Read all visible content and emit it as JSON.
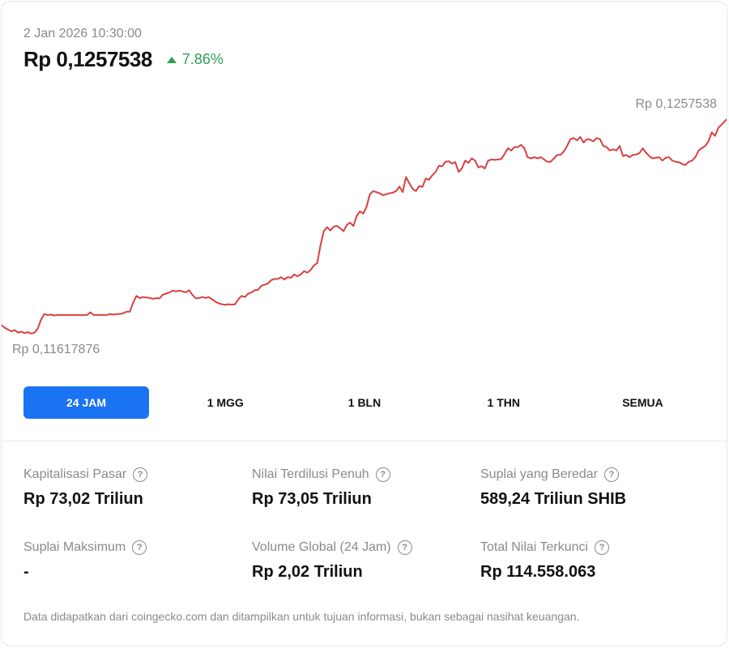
{
  "header": {
    "timestamp": "2 Jan 2026 10:30:00",
    "price": "Rp 0,1257538",
    "change": "7.86%",
    "change_icon": "triangle-up-icon",
    "change_color": "#2ea055"
  },
  "chart_data": {
    "type": "line",
    "title": "",
    "xlabel": "",
    "ylabel": "",
    "max_label": "Rp 0,1257538",
    "min_label": "Rp 0,11617876",
    "ylim": [
      0.1161,
      0.1258
    ],
    "line_color": "#d94040",
    "grid": false,
    "series": [
      {
        "name": "",
        "values": [
          0.11655,
          0.11643,
          0.11635,
          0.11628,
          0.11633,
          0.11622,
          0.11626,
          0.1162,
          0.11624,
          0.11618,
          0.11622,
          0.1164,
          0.1168,
          0.11705,
          0.117,
          0.11702,
          0.11698,
          0.117,
          0.117,
          0.117,
          0.117,
          0.117,
          0.117,
          0.117,
          0.117,
          0.117,
          0.117,
          0.11712,
          0.117,
          0.117,
          0.117,
          0.117,
          0.117,
          0.11705,
          0.11702,
          0.11704,
          0.11705,
          0.11708,
          0.11715,
          0.11715,
          0.11755,
          0.11785,
          0.11775,
          0.1178,
          0.11778,
          0.11776,
          0.11772,
          0.11775,
          0.11774,
          0.1179,
          0.11795,
          0.118,
          0.11808,
          0.11805,
          0.11808,
          0.11805,
          0.118,
          0.1181,
          0.1179,
          0.11775,
          0.11775,
          0.1178,
          0.11776,
          0.1178,
          0.1177,
          0.1176,
          0.11752,
          0.11748,
          0.11745,
          0.11748,
          0.11746,
          0.11748,
          0.1177,
          0.11785,
          0.1178,
          0.11795,
          0.118,
          0.1181,
          0.11812,
          0.1183,
          0.11835,
          0.1184,
          0.11855,
          0.1186,
          0.1186,
          0.11868,
          0.11858,
          0.11868,
          0.11865,
          0.1188,
          0.11872,
          0.1188,
          0.11895,
          0.11888,
          0.119,
          0.1192,
          0.1193,
          0.1201,
          0.12072,
          0.1209,
          0.12075,
          0.12092,
          0.12095,
          0.12085,
          0.12072,
          0.121,
          0.1211,
          0.12095,
          0.1214,
          0.1216,
          0.1215,
          0.1218,
          0.12235,
          0.1225,
          0.12245,
          0.1224,
          0.12232,
          0.12236,
          0.1224,
          0.12243,
          0.1225,
          0.1227,
          0.12245,
          0.12312,
          0.12285,
          0.1226,
          0.1225,
          0.12272,
          0.12268,
          0.12305,
          0.123,
          0.1232,
          0.12335,
          0.12362,
          0.1236,
          0.1238,
          0.12382,
          0.12372,
          0.12378,
          0.12335,
          0.1235,
          0.12385,
          0.12375,
          0.12395,
          0.12385,
          0.12355,
          0.1236,
          0.1235,
          0.12385,
          0.1239,
          0.12388,
          0.1239,
          0.12392,
          0.12415,
          0.1244,
          0.1243,
          0.12445,
          0.12445,
          0.12455,
          0.1244,
          0.124,
          0.12395,
          0.124,
          0.12395,
          0.124,
          0.1239,
          0.1238,
          0.1238,
          0.12395,
          0.1241,
          0.1241,
          0.12425,
          0.1245,
          0.1248,
          0.12485,
          0.12475,
          0.1249,
          0.12465,
          0.1248,
          0.12478,
          0.1247,
          0.12485,
          0.1248,
          0.1245,
          0.12445,
          0.1243,
          0.12435,
          0.1243,
          0.1245,
          0.12405,
          0.1241,
          0.124,
          0.1241,
          0.12412,
          0.12418,
          0.1244,
          0.1242,
          0.12405,
          0.12395,
          0.12398,
          0.124,
          0.12385,
          0.12398,
          0.124,
          0.12385,
          0.1238,
          0.12378,
          0.1237,
          0.12365,
          0.1238,
          0.12385,
          0.124,
          0.1243,
          0.1244,
          0.1245,
          0.1247,
          0.1251,
          0.12495,
          0.1253,
          0.12545,
          0.1256,
          0.12575
        ]
      }
    ]
  },
  "tabs": [
    {
      "label": "24 JAM",
      "active": true
    },
    {
      "label": "1 MGG",
      "active": false
    },
    {
      "label": "1 BLN",
      "active": false
    },
    {
      "label": "1 THN",
      "active": false
    },
    {
      "label": "SEMUA",
      "active": false
    }
  ],
  "stats": [
    {
      "label": "Kapitalisasi Pasar",
      "value": "Rp 73,02 Triliun",
      "icon": "help-circle-icon"
    },
    {
      "label": "Nilai Terdilusi Penuh",
      "value": "Rp 73,05 Triliun",
      "icon": "help-circle-icon"
    },
    {
      "label": "Suplai yang Beredar",
      "value": "589,24 Triliun SHIB",
      "icon": "help-circle-icon"
    },
    {
      "label": "Suplai Maksimum",
      "value": "-",
      "icon": "help-circle-icon"
    },
    {
      "label": "Volume Global (24 Jam)",
      "value": "Rp 2,02 Triliun",
      "icon": "help-circle-icon"
    },
    {
      "label": "Total Nilai Terkunci",
      "value": "Rp 114.558.063",
      "icon": "help-circle-icon"
    }
  ],
  "help_glyph": "?",
  "footer": {
    "note": "Data didapatkan dari coingecko.com dan ditampilkan untuk tujuan informasi, bukan sebagai nasihat keuangan."
  },
  "accent_color": "#1a73f0"
}
